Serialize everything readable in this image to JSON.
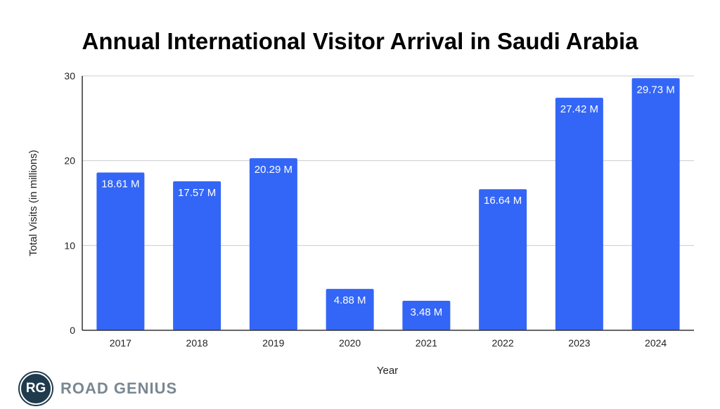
{
  "chart_data": {
    "type": "bar",
    "title": "Annual International Visitor Arrival in Saudi Arabia",
    "xlabel": "Year",
    "ylabel": "Total Visits (in millions)",
    "categories": [
      "2017",
      "2018",
      "2019",
      "2020",
      "2021",
      "2022",
      "2023",
      "2024"
    ],
    "values": [
      18.61,
      17.57,
      20.29,
      4.88,
      3.48,
      16.64,
      27.42,
      29.73
    ],
    "data_labels": [
      "18.61 M",
      "17.57 M",
      "20.29 M",
      "4.88 M",
      "3.48 M",
      "16.64 M",
      "27.42 M",
      "29.73 M"
    ],
    "ylim": [
      0,
      30
    ],
    "yticks": [
      0,
      10,
      20,
      30
    ],
    "grid": true,
    "bar_color": "#3366f6"
  },
  "logo": {
    "initials": "RG",
    "name": "ROAD GENIUS"
  }
}
